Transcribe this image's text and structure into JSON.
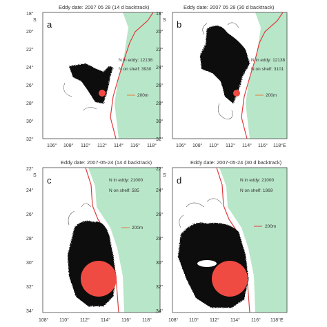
{
  "colors": {
    "land": "#b8e6c9",
    "shelf_line": "#e03a3a",
    "eddy": "#ef4b43",
    "particles": "#111111",
    "frame": "#444444"
  },
  "panels": [
    {
      "letter": "a",
      "title": "Eddy date: 2007 05 28 (14 d backtrack)",
      "n_eddy": "N in eddy: 12138",
      "n_shelf": "N on shelf: 3930",
      "legend": "200m",
      "lat_ticks": [
        "18°",
        "S",
        "20°",
        "22°",
        "24°",
        "26°",
        "28°",
        "30°",
        "32°"
      ],
      "lon_ticks": [
        "106°",
        "108°",
        "110°",
        "112°",
        "114°",
        "116°",
        "118°"
      ]
    },
    {
      "letter": "b",
      "title": "Eddy date: 2007 05 28 (30 d backtrack)",
      "n_eddy": "N in eddy: 12138",
      "n_shelf": "N on shelf: 3101",
      "legend": "200m",
      "lat_ticks": [
        "18°",
        "S",
        "20°",
        "22°",
        "24°",
        "26°",
        "28°",
        "30°",
        "32°"
      ],
      "lon_ticks": [
        "106°",
        "108°",
        "110°",
        "112°",
        "114°",
        "116°",
        "118°E"
      ]
    },
    {
      "letter": "c",
      "title": "Eddy date: 2007-05-24 (14 d backtrack)",
      "n_eddy": "N in eddy: 21000",
      "n_shelf": "N on shelf: 585",
      "legend": "200m",
      "lat_ticks": [
        "22°",
        "S",
        "24°",
        "26°",
        "28°",
        "30°",
        "32°",
        "34°"
      ],
      "lon_ticks": [
        "108°",
        "110°",
        "112°",
        "114°",
        "116°",
        "118°"
      ]
    },
    {
      "letter": "d",
      "title": "Eddy date: 2007-05-24 (30 d backtrack)",
      "n_eddy": "N in eddy: 21000",
      "n_shelf": "N on shelf: 1869",
      "legend": "200m",
      "lat_ticks": [
        "22°",
        "S",
        "24°",
        "26°",
        "28°",
        "30°",
        "32°",
        "34°"
      ],
      "lon_ticks": [
        "108°",
        "110°",
        "112°",
        "114°",
        "116°",
        "118°E"
      ]
    }
  ]
}
